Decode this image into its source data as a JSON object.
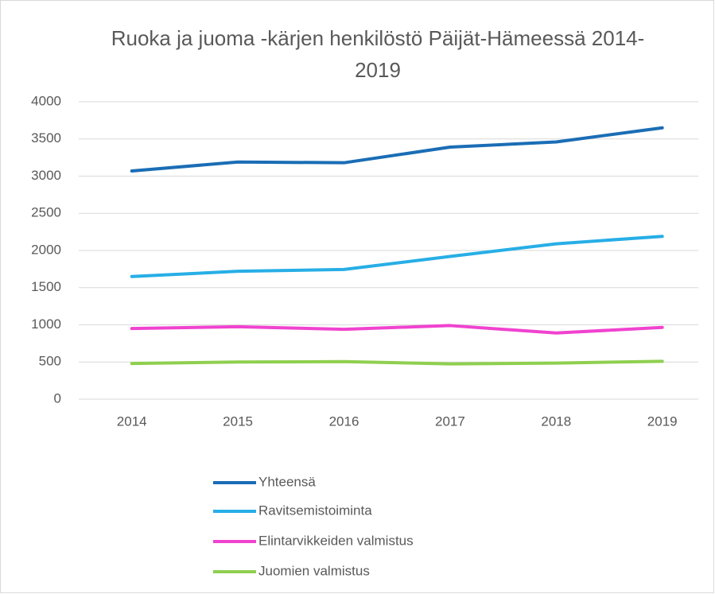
{
  "chart_data": {
    "type": "line",
    "title": "Ruoka ja juoma -kärjen henkilöstö Päijät-Hämeessä 2014-2019",
    "categories": [
      "2014",
      "2015",
      "2016",
      "2017",
      "2018",
      "2019"
    ],
    "series": [
      {
        "name": "Yhteensä",
        "color": "#1a6db5",
        "values": [
          3070,
          3190,
          3180,
          3390,
          3460,
          3650
        ]
      },
      {
        "name": "Ravitsemistoiminta",
        "color": "#27aee6",
        "values": [
          1650,
          1720,
          1745,
          1920,
          2090,
          2190
        ]
      },
      {
        "name": "Elintarvikkeiden valmistus",
        "color": "#f043cf",
        "values": [
          950,
          975,
          940,
          990,
          890,
          965
        ]
      },
      {
        "name": "Juomien valmistus",
        "color": "#8fcf4f",
        "values": [
          480,
          500,
          505,
          475,
          485,
          510
        ]
      }
    ],
    "ylim": [
      0,
      4000
    ],
    "yticks": [
      0,
      500,
      1000,
      1500,
      2000,
      2500,
      3000,
      3500,
      4000
    ],
    "grid": true,
    "legend": "bottom"
  }
}
